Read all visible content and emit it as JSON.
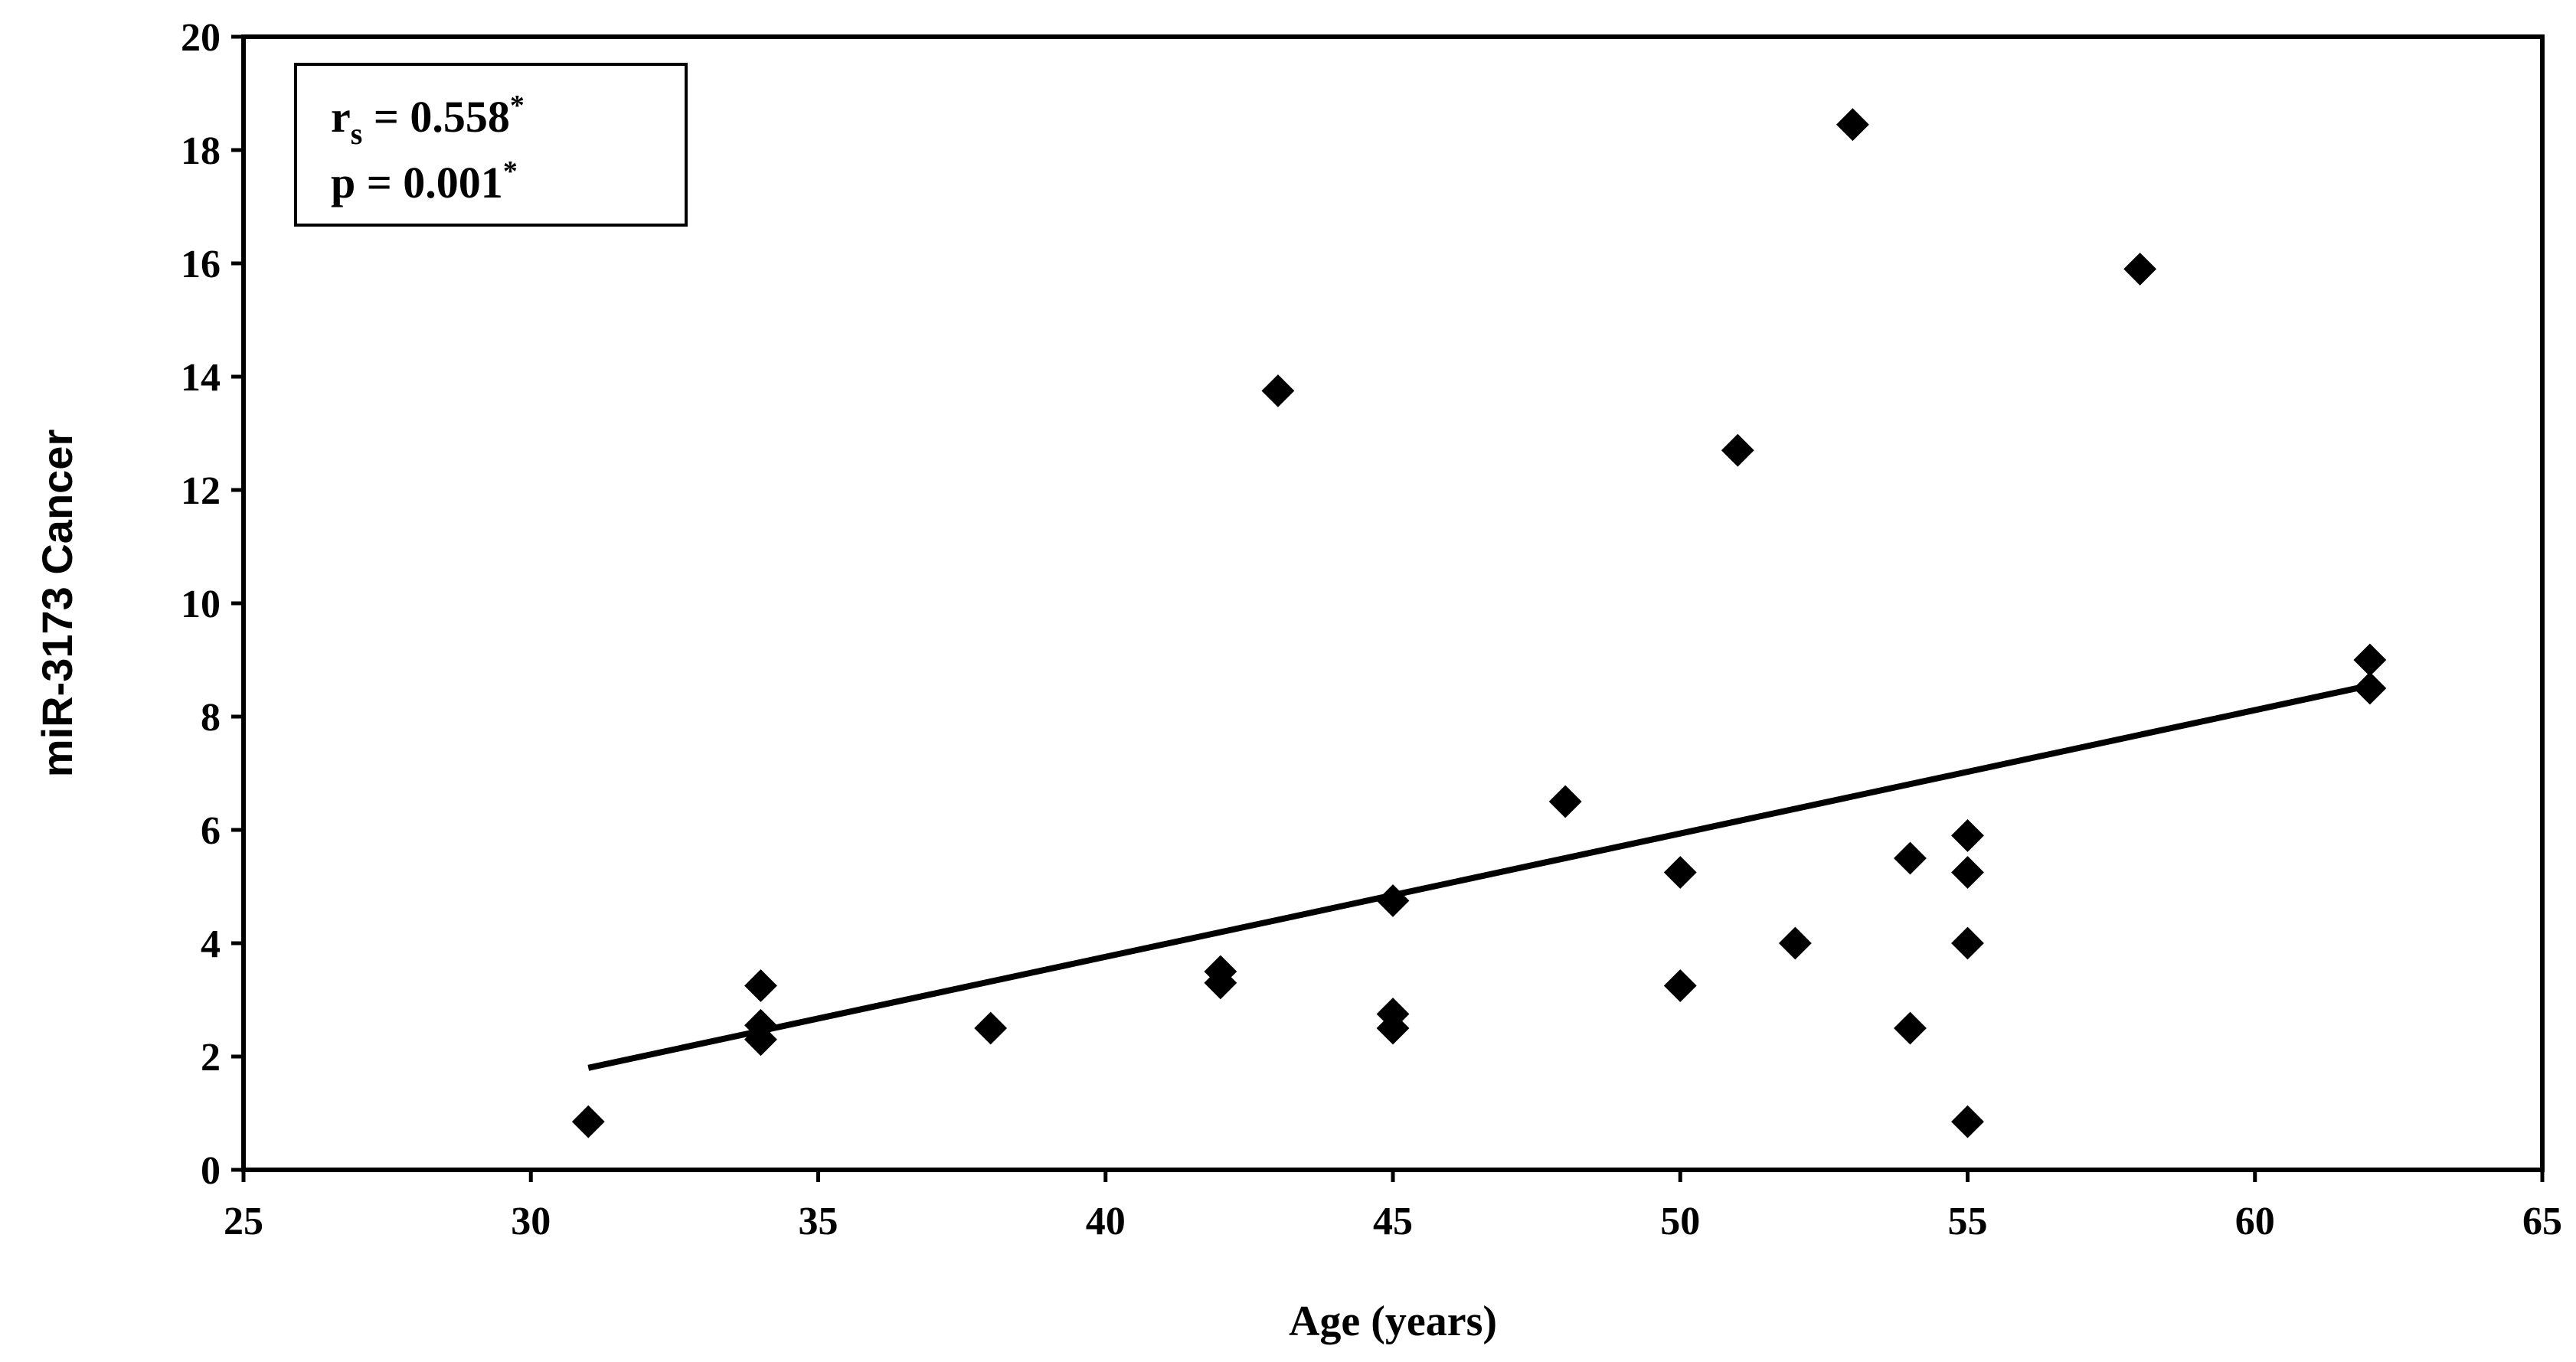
{
  "chart_data": {
    "type": "scatter",
    "title": "",
    "xlabel": "Age (years)",
    "ylabel": "miR-3173 Cancer",
    "xlim": [
      25,
      65
    ],
    "ylim": [
      0,
      20
    ],
    "xticks": [
      25,
      30,
      35,
      40,
      45,
      50,
      55,
      60,
      65
    ],
    "yticks": [
      0,
      2,
      4,
      6,
      8,
      10,
      12,
      14,
      16,
      18,
      20
    ],
    "grid": false,
    "marker": "diamond",
    "marker_color": "#000000",
    "points": [
      {
        "x": 31,
        "y": 0.85
      },
      {
        "x": 34,
        "y": 3.25
      },
      {
        "x": 34,
        "y": 2.55
      },
      {
        "x": 34,
        "y": 2.3
      },
      {
        "x": 38,
        "y": 2.5
      },
      {
        "x": 42,
        "y": 3.5
      },
      {
        "x": 42,
        "y": 3.3
      },
      {
        "x": 43,
        "y": 13.75
      },
      {
        "x": 45,
        "y": 4.75
      },
      {
        "x": 45,
        "y": 2.75
      },
      {
        "x": 45,
        "y": 2.5
      },
      {
        "x": 48,
        "y": 6.5
      },
      {
        "x": 50,
        "y": 5.25
      },
      {
        "x": 50,
        "y": 3.25
      },
      {
        "x": 51,
        "y": 12.7
      },
      {
        "x": 52,
        "y": 4.0
      },
      {
        "x": 53,
        "y": 18.45
      },
      {
        "x": 54,
        "y": 5.5
      },
      {
        "x": 54,
        "y": 2.5
      },
      {
        "x": 55,
        "y": 5.9
      },
      {
        "x": 55,
        "y": 5.25
      },
      {
        "x": 55,
        "y": 4.0
      },
      {
        "x": 55,
        "y": 0.85
      },
      {
        "x": 58,
        "y": 15.9
      },
      {
        "x": 62,
        "y": 9.0
      },
      {
        "x": 62,
        "y": 8.5
      }
    ],
    "trendline": {
      "x": [
        31,
        62
      ],
      "y": [
        1.8,
        8.55
      ]
    },
    "annotation": {
      "r_symbol": "r",
      "r_subscript": "s",
      "r_value": " = 0.558",
      "r_mark": "*",
      "p_text": "p = 0.001",
      "p_mark": "*",
      "position": "top-left"
    }
  }
}
